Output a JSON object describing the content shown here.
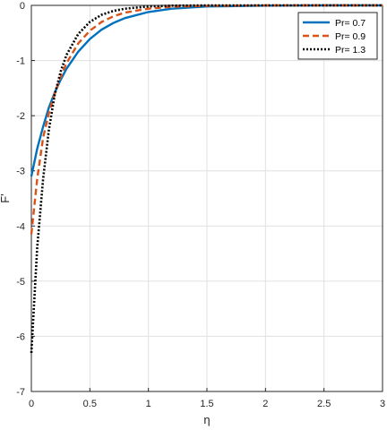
{
  "chart_data": {
    "type": "line",
    "xlabel": "η",
    "ylabel": "F'",
    "xlim": [
      0,
      3
    ],
    "ylim": [
      -7,
      0
    ],
    "xticks": [
      "0",
      "0.5",
      "1",
      "1.5",
      "2",
      "2.5",
      "3"
    ],
    "yticks": [
      "0",
      "-1",
      "-2",
      "-3",
      "-4",
      "-5",
      "-6",
      "-7"
    ],
    "grid": true,
    "legend_position": "top-right",
    "series": [
      {
        "name": "Pr= 0.7",
        "color": "#0072BD",
        "style": "solid",
        "x": [
          0,
          0.05,
          0.1,
          0.15,
          0.2,
          0.25,
          0.3,
          0.4,
          0.5,
          0.6,
          0.7,
          0.8,
          1.0,
          1.2,
          1.5,
          2.0,
          2.5,
          3.0
        ],
        "y": [
          -3.1,
          -2.6,
          -2.2,
          -1.85,
          -1.58,
          -1.35,
          -1.15,
          -0.84,
          -0.61,
          -0.44,
          -0.32,
          -0.23,
          -0.12,
          -0.06,
          -0.02,
          -0.005,
          0,
          0
        ]
      },
      {
        "name": "Pr= 0.9",
        "color": "#D95319",
        "style": "dashed",
        "x": [
          0,
          0.05,
          0.1,
          0.15,
          0.2,
          0.25,
          0.3,
          0.4,
          0.5,
          0.6,
          0.7,
          0.8,
          1.0,
          1.2,
          1.5,
          2.0,
          2.5,
          3.0
        ],
        "y": [
          -4.15,
          -3.15,
          -2.4,
          -1.95,
          -1.6,
          -1.3,
          -1.05,
          -0.69,
          -0.46,
          -0.3,
          -0.2,
          -0.13,
          -0.06,
          -0.025,
          -0.01,
          0,
          0,
          0
        ]
      },
      {
        "name": "Pr= 1.3",
        "color": "#000000",
        "style": "dotted",
        "x": [
          0,
          0.05,
          0.1,
          0.15,
          0.2,
          0.25,
          0.3,
          0.4,
          0.5,
          0.6,
          0.7,
          0.8,
          1.0,
          1.2,
          1.5,
          2.0,
          2.5,
          3.0
        ],
        "y": [
          -6.3,
          -4.4,
          -3.15,
          -2.25,
          -1.62,
          -1.2,
          -0.9,
          -0.52,
          -0.3,
          -0.17,
          -0.1,
          -0.06,
          -0.02,
          -0.005,
          0,
          0,
          0,
          0
        ]
      }
    ]
  }
}
